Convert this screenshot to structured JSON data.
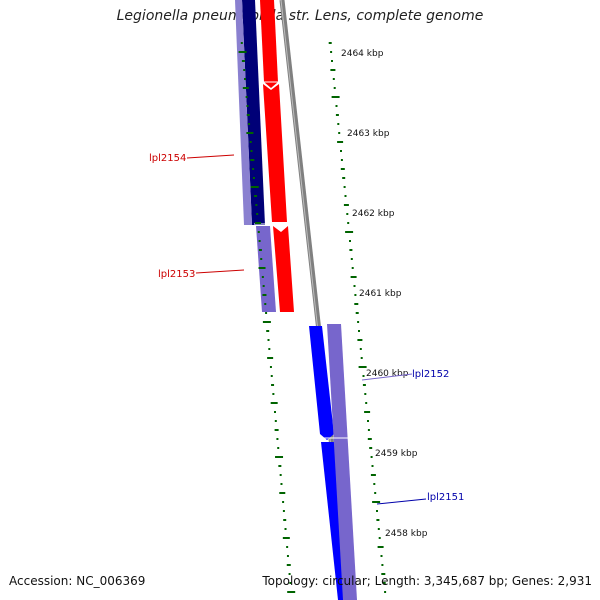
{
  "title": "Legionella pneumophila str. Lens, complete genome",
  "footer": {
    "accession": "Accession: NC_006369",
    "summary": "Topology: circular; Length: 3,345,687 bp; Genes: 2,931"
  },
  "ticks": [
    "2464 kbp",
    "2463 kbp",
    "2462 kbp",
    "2461 kbp",
    "2460 kbp",
    "2459 kbp",
    "2458 kbp"
  ],
  "genes": [
    {
      "label": "lpl2154",
      "color": "#cc0000",
      "strand": "reverse"
    },
    {
      "label": "lpl2153",
      "color": "#cc0000",
      "strand": "reverse"
    },
    {
      "label": "lpl2152",
      "color": "#0000aa",
      "strand": "forward"
    },
    {
      "label": "lpl2151",
      "color": "#0000aa",
      "strand": "forward"
    }
  ],
  "colors": {
    "backbone": "#808080",
    "gc_skew": "#006400",
    "forward_cds": "#0000ff",
    "reverse_cds": "#ff0000",
    "forward_orf": "#7766cc",
    "dark_cds": "#000077"
  }
}
